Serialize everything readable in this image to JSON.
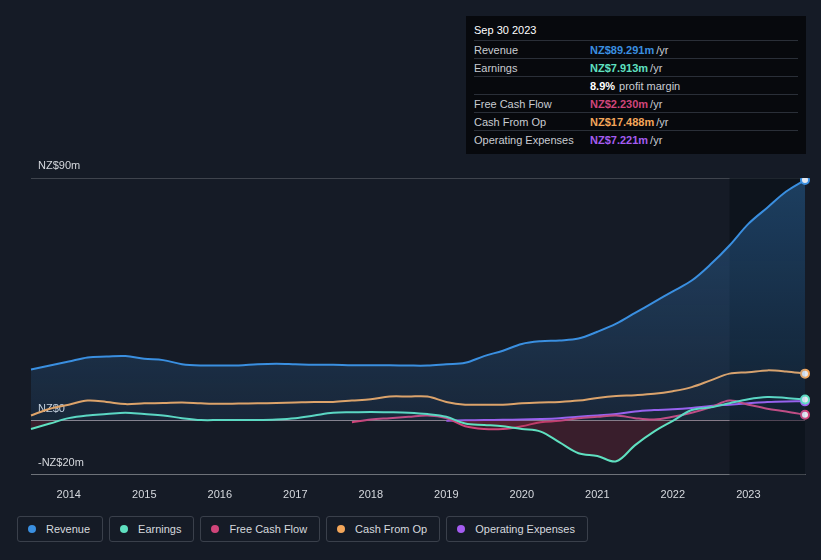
{
  "chart_data": {
    "type": "line",
    "categories": [
      null,
      null,
      "2014",
      null,
      null,
      null,
      "2015",
      null,
      null,
      null,
      "2016",
      null,
      null,
      null,
      "2017",
      null,
      null,
      null,
      "2018",
      null,
      null,
      null,
      "2019",
      null,
      null,
      null,
      "2020",
      null,
      null,
      null,
      "2021",
      null,
      null,
      null,
      "2022",
      null,
      null,
      null,
      "2023",
      null,
      null,
      null
    ],
    "series": [
      {
        "name": "Revenue",
        "color": "#3a8fe0",
        "type": "area",
        "values": [
          19,
          20.5,
          22,
          23.5,
          23.8,
          24,
          23,
          22.5,
          21,
          20.5,
          20.5,
          20.5,
          21,
          21.2,
          21,
          20.8,
          20.8,
          20.6,
          20.6,
          20.6,
          20.5,
          20.5,
          21,
          21.5,
          24,
          26,
          28.5,
          29.5,
          29.8,
          30.5,
          33,
          36,
          40,
          44,
          48,
          52,
          58,
          65,
          73,
          79,
          85,
          89.291
        ]
      },
      {
        "name": "Earnings",
        "color": "#5fe0c0",
        "type": "line",
        "values": [
          -3,
          -1,
          1,
          2,
          2.5,
          3,
          2.5,
          2,
          1,
          0.3,
          0.3,
          0.3,
          0.3,
          0.5,
          1,
          2,
          3,
          3.2,
          3.3,
          3.2,
          3,
          2.5,
          1.5,
          -1,
          -1.5,
          -2,
          -3,
          -4,
          -8,
          -12,
          -13,
          -15,
          -9,
          -4,
          0,
          4,
          5,
          6.5,
          8,
          8.8,
          8.5,
          7.913
        ]
      },
      {
        "name": "Free Cash Flow",
        "color": "#d0457a",
        "type": "line",
        "values": [
          null,
          null,
          null,
          null,
          null,
          null,
          null,
          null,
          null,
          null,
          null,
          null,
          null,
          null,
          null,
          null,
          null,
          -0.5,
          0.5,
          1,
          1.5,
          2,
          1,
          -2,
          -3,
          -3,
          -2,
          -0.5,
          0,
          1,
          1.5,
          2,
          1,
          0.5,
          1.5,
          3,
          5,
          7.5,
          6,
          4.5,
          3.5,
          2.23
        ]
      },
      {
        "name": "Cash From Op",
        "color": "#f3a65a",
        "type": "line",
        "values": [
          2,
          4.5,
          6,
          7.5,
          7,
          6.2,
          6.5,
          6.6,
          6.8,
          6.5,
          6.3,
          6.4,
          6.5,
          6.6,
          6.8,
          7,
          7,
          7.5,
          8,
          9,
          9,
          9,
          7,
          6,
          6,
          6,
          6.5,
          6.8,
          7,
          7.5,
          8.5,
          9.2,
          9.5,
          10,
          11,
          12.5,
          15,
          17.5,
          18,
          18.7,
          18.3,
          17.488
        ]
      },
      {
        "name": "Operating Expenses",
        "color": "#a45cf0",
        "type": "line",
        "values": [
          null,
          null,
          null,
          null,
          null,
          null,
          null,
          null,
          null,
          null,
          null,
          null,
          null,
          null,
          null,
          null,
          null,
          null,
          null,
          null,
          null,
          null,
          0,
          0.2,
          0.3,
          0.4,
          0.5,
          0.7,
          1,
          1.5,
          2,
          2.5,
          3.5,
          4,
          4.3,
          4.8,
          5.5,
          6,
          6.5,
          7,
          7.2,
          7.221
        ]
      }
    ],
    "ylim": [
      -20,
      90
    ],
    "yticks": [
      {
        "value": -20,
        "label": "-NZ$20m"
      },
      {
        "value": 0,
        "label": "NZ$0"
      },
      {
        "value": 90,
        "label": "NZ$90m"
      }
    ],
    "grid": true,
    "legend": "bottom"
  },
  "summary_box": {
    "date": "Sep 30 2023",
    "rows": [
      {
        "label": "Revenue",
        "value": "NZ$89.291m",
        "per": "/yr"
      },
      {
        "label": "Earnings",
        "value": "NZ$7.913m",
        "per": "/yr"
      },
      {
        "text_value": "8.9%",
        "text": "profit margin"
      },
      {
        "label": "Free Cash Flow",
        "value": "NZ$2.230m",
        "per": "/yr"
      },
      {
        "label": "Cash From Op",
        "value": "NZ$17.488m",
        "per": "/yr"
      },
      {
        "label": "Operating Expenses",
        "value": "NZ$7.221m",
        "per": "/yr"
      }
    ]
  }
}
